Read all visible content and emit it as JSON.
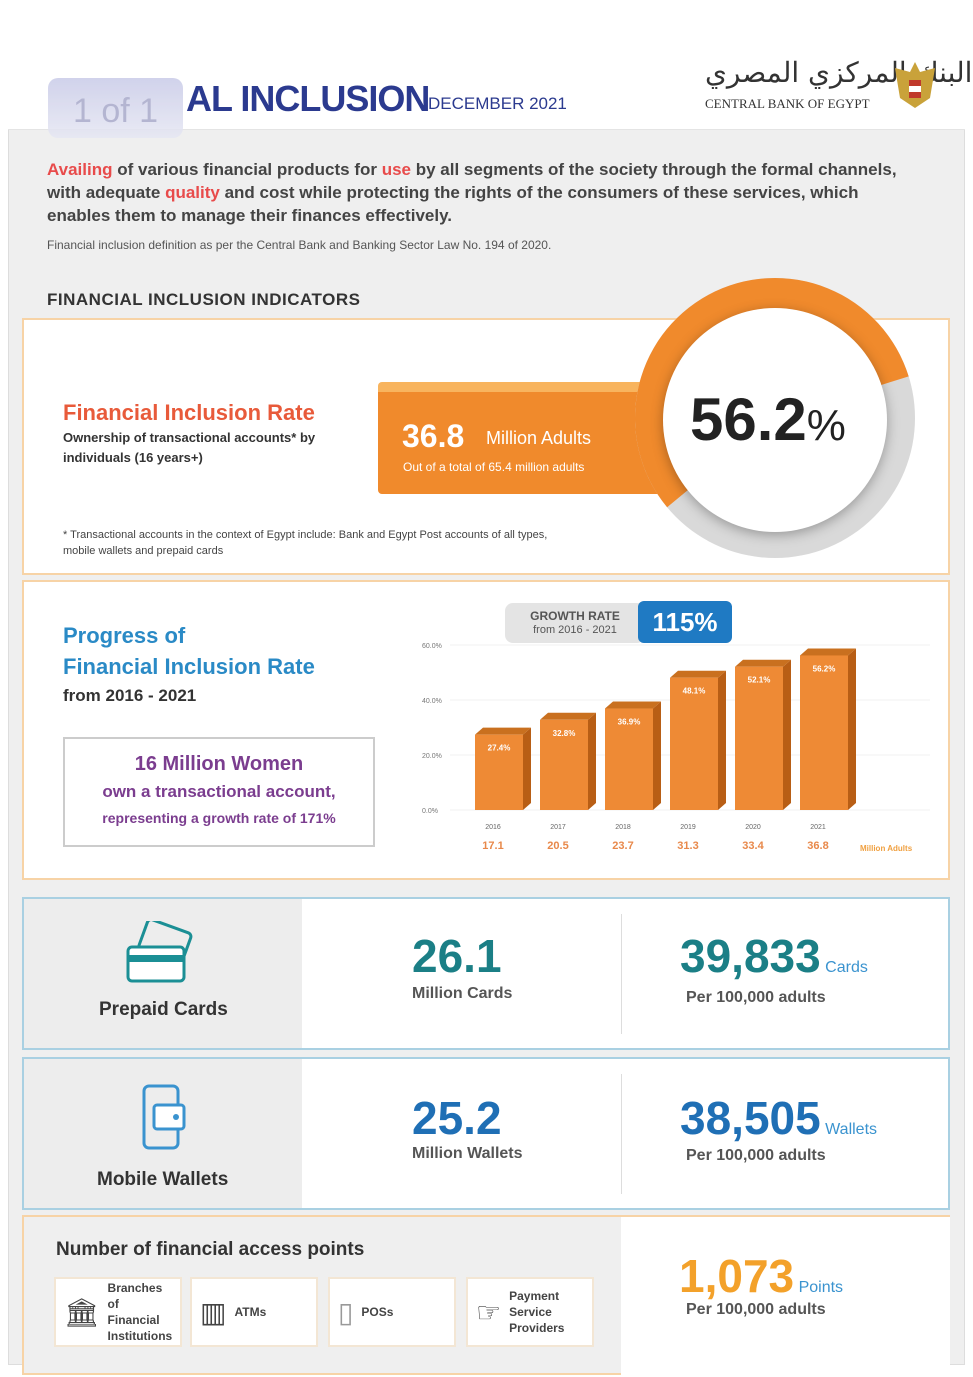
{
  "header": {
    "pager": "1 of 1",
    "title": "AL INCLUSION",
    "date": "DECEMBER 2021",
    "logo_ar": "البنك المركزي المصري",
    "logo_en": "CENTRAL BANK OF EGYPT"
  },
  "intro": {
    "w1": "Availing",
    "t1": " of various financial products for ",
    "w2": "use",
    "t2": " by all segments of the society through the formal channels, with adequate ",
    "w3": "quality",
    "t3": " and cost while protecting the rights of the consumers of these services, which enables them to manage their finances effectively.",
    "law": "Financial inclusion definition as per the Central Bank and Banking Sector Law No. 194 of 2020."
  },
  "section_title": "FINANCIAL INCLUSION INDICATORS",
  "rate": {
    "title": "Financial Inclusion Rate",
    "sub": "Ownership of transactional accounts* by individuals (16 years+)",
    "adults": "36.8",
    "adults_label": "Million Adults",
    "adults_sub": "Out of a total of 65.4 million adults",
    "percent": "56.2",
    "percent_sign": "%",
    "percent_value": 56.2,
    "footnote": "* Transactional accounts in the context of Egypt include: Bank and Egypt Post accounts of all types, mobile wallets and prepaid cards"
  },
  "progress": {
    "title1": "Progress of",
    "title2": "Financial Inclusion Rate",
    "years": "from 2016 - 2021",
    "women1": "16 Million Women",
    "women2": "own a transactional account,",
    "women3": "representing a growth rate of 171%",
    "growth_label": "GROWTH RATE",
    "growth_range": "from 2016 - 2021",
    "growth_value": "115%"
  },
  "chart_data": {
    "type": "bar",
    "categories": [
      "2016",
      "2017",
      "2018",
      "2019",
      "2020",
      "2021"
    ],
    "values": [
      27.4,
      32.8,
      36.9,
      48.1,
      52.1,
      56.2
    ],
    "value_labels": [
      "27.4%",
      "32.8%",
      "36.9%",
      "48.1%",
      "52.1%",
      "56.2%"
    ],
    "adults": [
      "17.1",
      "20.5",
      "23.7",
      "31.3",
      "33.4",
      "36.8"
    ],
    "adults_unit": "Million Adults",
    "yticks": [
      "0.0%",
      "20.0%",
      "40.0%",
      "60.0%"
    ],
    "ylim": [
      0,
      60
    ]
  },
  "prepaid": {
    "label": "Prepaid Cards",
    "value": "26.1",
    "value_label": "Million Cards",
    "per": "39,833",
    "per_unit": "Cards",
    "per_label": "Per 100,000 adults"
  },
  "wallets": {
    "label": "Mobile Wallets",
    "value": "25.2",
    "value_label": "Million Wallets",
    "per": "38,505",
    "per_unit": "Wallets",
    "per_label": "Per 100,000 adults"
  },
  "access": {
    "title": "Number of financial access points",
    "items": [
      {
        "label": "Branches of Financial Institutions"
      },
      {
        "label": "ATMs"
      },
      {
        "label": "POSs"
      },
      {
        "label": "Payment Service Providers"
      }
    ],
    "per": "1,073",
    "per_unit": "Points",
    "per_label": "Per 100,000 adults"
  },
  "colors": {
    "orange": "#f08a2c",
    "blue": "#1f7ac3",
    "teal": "#1b7f86"
  }
}
